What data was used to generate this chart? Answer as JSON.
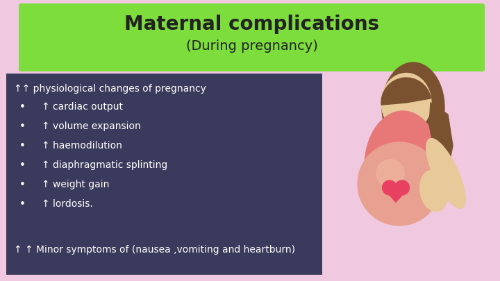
{
  "background_color": "#f0c8e0",
  "header_bg_color": "#7cdd3c",
  "header_title": "Maternal complications",
  "header_subtitle": "(During pregnancy)",
  "header_title_fontsize": 20,
  "header_subtitle_fontsize": 14,
  "header_title_color": "#222222",
  "header_subtitle_color": "#222222",
  "box_bg_color": "#3a3a5c",
  "text_color": "#ffffff",
  "text_fontsize": 10,
  "line1": "↑↑ physiological changes of pregnancy",
  "bullets": [
    "↑ cardiac output",
    "↑ volume expansion",
    "↑ haemodilution",
    "↑ diaphragmatic splinting",
    "↑ weight gain",
    "↑ lordosis."
  ],
  "footer_line": "↑ ↑ Minor symptoms of (nausea ,vomiting and heartburn)",
  "skin_color": "#e8c99a",
  "hair_color": "#7a5230",
  "dress_color": "#e87878",
  "belly_color": "#e8a090",
  "heart_color": "#e84060"
}
